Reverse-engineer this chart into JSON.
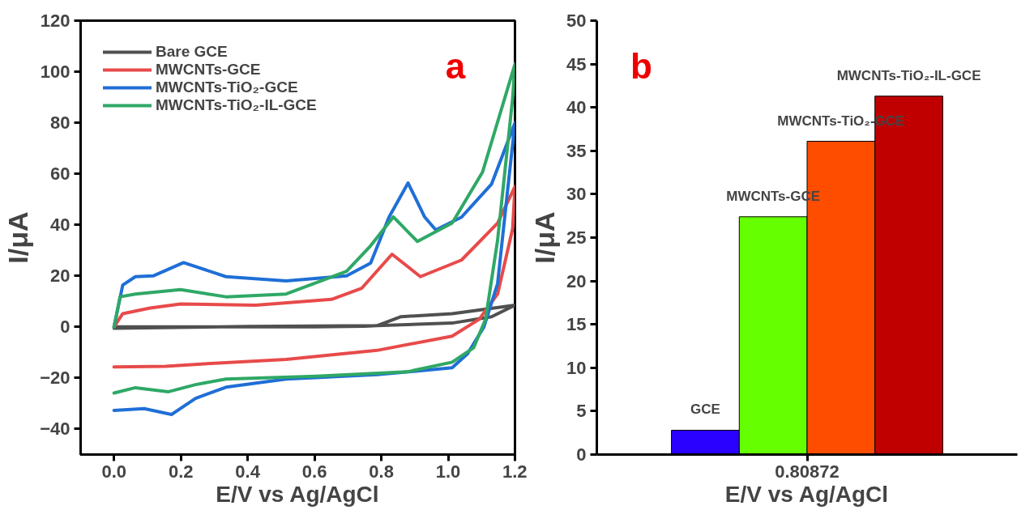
{
  "chart_data": [
    {
      "type": "line",
      "xlabel": "E/V vs Ag/AgCl",
      "ylabel": "I/μA",
      "annotations": [
        "a"
      ],
      "xlim": [
        -0.1,
        1.2
      ],
      "ylim": [
        -50,
        120
      ],
      "xticks": [
        {
          "value": 0,
          "label": "0.0"
        },
        0.2,
        0.4,
        0.6,
        0.8,
        {
          "value": 1,
          "label": "1.0"
        },
        1.2
      ],
      "yticks": [
        -40,
        -20,
        0,
        20,
        40,
        60,
        80,
        100,
        120
      ],
      "grid": false,
      "legend": "top left",
      "line_style": "solid",
      "marker": "none",
      "series": [
        {
          "name": "Bare GCE",
          "color": "#505050",
          "x": [
            0,
            0.3,
            0.6,
            0.75,
            0.787,
            0.859,
            1.012,
            1.2,
            1.13,
            1.012,
            0.787,
            0.4,
            0
          ],
          "values": [
            0,
            0,
            0,
            0.3,
            0.5,
            4,
            5.2,
            8.5,
            4,
            1.5,
            0.5,
            0.2,
            -0.5
          ]
        },
        {
          "name": "MWCNTs-GCE",
          "color": "#e84a4a",
          "x": [
            0,
            0.026,
            0.108,
            0.199,
            0.424,
            0.651,
            0.741,
            0.832,
            0.917,
            1.04,
            1.148,
            1.2,
            1.193,
            1.148,
            1.093,
            1.012,
            0.787,
            0.515,
            0.289,
            0.154,
            0
          ],
          "values": [
            0,
            5.2,
            7.4,
            9,
            8.5,
            10.8,
            15.1,
            28.5,
            19.7,
            26.2,
            40.7,
            55,
            38.5,
            12.9,
            3,
            -3.6,
            -9.2,
            -12.7,
            -14.3,
            -15.4,
            -15.7
          ]
        },
        {
          "name": "MWCNTs-TiO₂-GCE",
          "color": "#1f6fd6",
          "x": [
            0,
            0.026,
            0.064,
            0.117,
            0.208,
            0.335,
            0.515,
            0.696,
            0.768,
            0.823,
            0.88,
            0.93,
            0.963,
            1.04,
            1.13,
            1.2,
            1.18,
            1.148,
            1.107,
            1.058,
            1.012,
            0.787,
            0.515,
            0.335,
            0.244,
            0.172,
            0.09,
            0
          ],
          "values": [
            0,
            16.4,
            19.7,
            20,
            25.2,
            19.7,
            18,
            20,
            25,
            43,
            56.4,
            43,
            38,
            43,
            56,
            80,
            56,
            17,
            0,
            -10.5,
            -16,
            -18.7,
            -20.4,
            -23.6,
            -28,
            -34.3,
            -32,
            -32.7
          ]
        },
        {
          "name": "MWCNTs-TiO₂-IL-GCE",
          "color": "#2fa866",
          "x": [
            0,
            0.018,
            0.064,
            0.199,
            0.335,
            0.515,
            0.696,
            0.768,
            0.836,
            0.908,
            1.012,
            1.103,
            1.2,
            1.193,
            1.148,
            1.112,
            1.076,
            1.012,
            0.877,
            0.605,
            0.335,
            0.244,
            0.163,
            0.064,
            0
          ],
          "values": [
            0,
            11.8,
            12.9,
            14.6,
            11.8,
            12.9,
            21.8,
            31.8,
            43.1,
            33.5,
            40.7,
            60.7,
            103,
            89.6,
            34,
            3,
            -8.2,
            -13.8,
            -17.6,
            -19.3,
            -20.4,
            -22.6,
            -25.4,
            -23.8,
            -25.9
          ]
        }
      ]
    },
    {
      "type": "bar",
      "xlabel": "E/V vs Ag/AgCl",
      "ylabel": "I/μA",
      "annotations": [
        "b"
      ],
      "categories": [
        "0.80872"
      ],
      "ylim": [
        0,
        50
      ],
      "yticks": [
        0,
        5,
        10,
        15,
        20,
        25,
        30,
        35,
        40,
        45,
        50
      ],
      "grid": false,
      "legend": false,
      "series": [
        {
          "name": "GCE",
          "color": "#2a00ff",
          "values": [
            2.8
          ]
        },
        {
          "name": "MWCNTs-GCE",
          "color": "#66ff00",
          "values": [
            27.4
          ]
        },
        {
          "name": "MWCNTs-TiO₂-GCE",
          "color": "#ff4d00",
          "values": [
            36.1
          ]
        },
        {
          "name": "MWCNTs-TiO₂-IL-GCE",
          "color": "#c00000",
          "values": [
            41.3
          ]
        }
      ]
    }
  ]
}
